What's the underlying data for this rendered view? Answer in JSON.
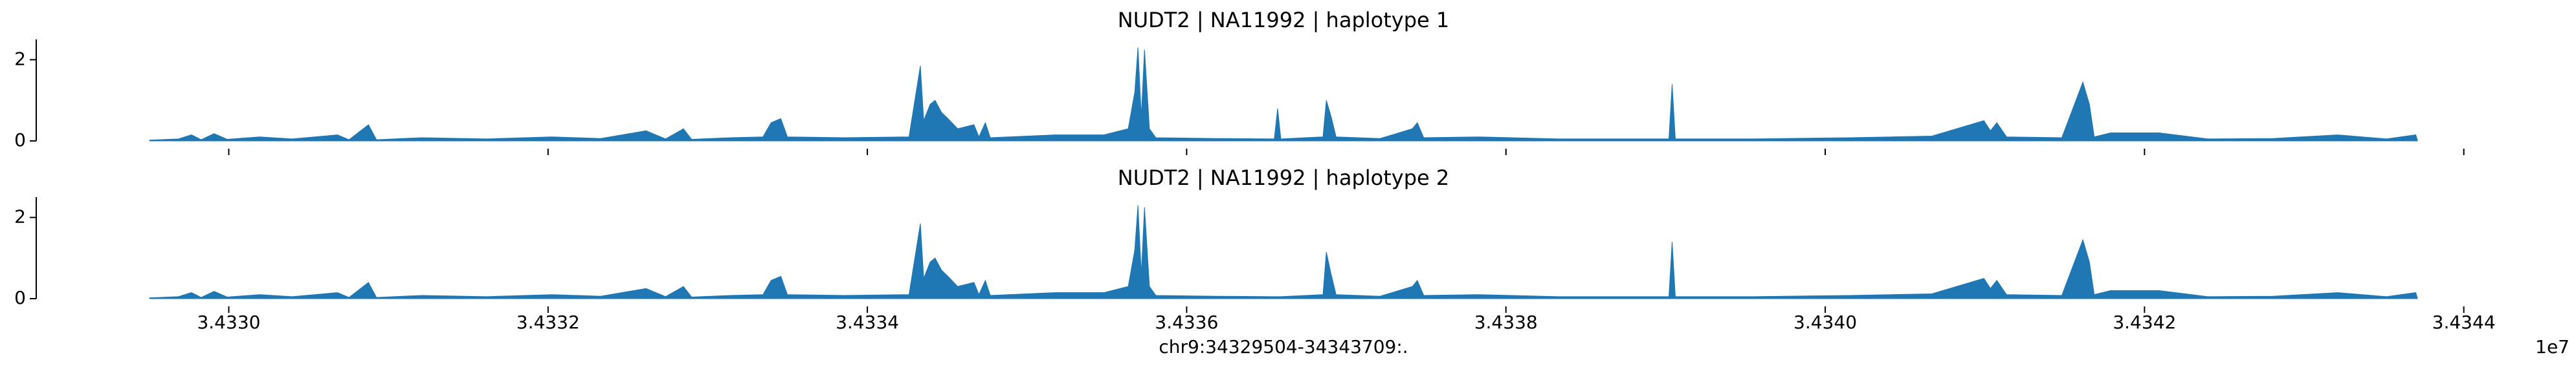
{
  "chart_data": [
    {
      "type": "area",
      "title": "NUDT2 | NA11992 | haplotype 1",
      "color": "#1f77b4",
      "xlim": [
        34328794,
        34344419
      ],
      "ylim": [
        0,
        2.5
      ],
      "yticks": [
        0,
        2
      ],
      "xticks": [
        34330000,
        34332000,
        34334000,
        34336000,
        34338000,
        34340000,
        34342000,
        34344000
      ],
      "x": [
        34329504,
        34329685,
        34329766,
        34329827,
        34329908,
        34329990,
        34330193,
        34330397,
        34330681,
        34330753,
        34330875,
        34330925,
        34331210,
        34331617,
        34332024,
        34332329,
        34332614,
        34332736,
        34332848,
        34332899,
        34333143,
        34333346,
        34333397,
        34333458,
        34333499,
        34333855,
        34334261,
        34334332,
        34334353,
        34334393,
        34334424,
        34334465,
        34334505,
        34334566,
        34334668,
        34334699,
        34334739,
        34334770,
        34335177,
        34335482,
        34335634,
        34335675,
        34335695,
        34335716,
        34335736,
        34335767,
        34335807,
        34336193,
        34336549,
        34336570,
        34336590,
        34336854,
        34336875,
        34336905,
        34336936,
        34337211,
        34337414,
        34337445,
        34337485,
        34337821,
        34338329,
        34339021,
        34339041,
        34339061,
        34339550,
        34340160,
        34340668,
        34340994,
        34341035,
        34341075,
        34341136,
        34341482,
        34341614,
        34341655,
        34341685,
        34341787,
        34342092,
        34342397,
        34342804,
        34343211,
        34343516,
        34343699,
        34343709
      ],
      "values": [
        0.02,
        0.05,
        0.15,
        0.03,
        0.18,
        0.04,
        0.1,
        0.05,
        0.15,
        0.03,
        0.4,
        0.03,
        0.08,
        0.05,
        0.1,
        0.06,
        0.25,
        0.05,
        0.3,
        0.04,
        0.08,
        0.1,
        0.45,
        0.55,
        0.1,
        0.08,
        0.1,
        1.85,
        0.5,
        0.9,
        1.0,
        0.7,
        0.55,
        0.3,
        0.4,
        0.1,
        0.45,
        0.08,
        0.15,
        0.15,
        0.3,
        1.2,
        2.3,
        0.6,
        2.25,
        0.3,
        0.08,
        0.06,
        0.05,
        0.8,
        0.05,
        0.1,
        1.0,
        0.6,
        0.1,
        0.06,
        0.3,
        0.45,
        0.08,
        0.1,
        0.05,
        0.05,
        1.4,
        0.05,
        0.05,
        0.08,
        0.12,
        0.5,
        0.25,
        0.45,
        0.1,
        0.08,
        1.45,
        0.9,
        0.1,
        0.2,
        0.2,
        0.05,
        0.06,
        0.15,
        0.05,
        0.15,
        0.02
      ]
    },
    {
      "type": "area",
      "title": "NUDT2 | NA11992 | haplotype 2",
      "color": "#1f77b4",
      "xlabel": "chr9:34329504-34343709:.",
      "x_offset_label": "1e7",
      "xlim": [
        34328794,
        34344419
      ],
      "ylim": [
        0,
        2.5
      ],
      "yticks": [
        0,
        2
      ],
      "xticks": [
        {
          "value": 34330000,
          "label": "3.4330"
        },
        {
          "value": 34332000,
          "label": "3.4332"
        },
        {
          "value": 34334000,
          "label": "3.4334"
        },
        {
          "value": 34336000,
          "label": "3.4336"
        },
        {
          "value": 34338000,
          "label": "3.4338"
        },
        {
          "value": 34340000,
          "label": "3.4340"
        },
        {
          "value": 34342000,
          "label": "3.4342"
        },
        {
          "value": 34344000,
          "label": "3.4344"
        }
      ],
      "x": [
        34329504,
        34329685,
        34329766,
        34329827,
        34329908,
        34329990,
        34330193,
        34330397,
        34330681,
        34330753,
        34330875,
        34330925,
        34331210,
        34331617,
        34332024,
        34332329,
        34332614,
        34332736,
        34332848,
        34332899,
        34333143,
        34333346,
        34333397,
        34333458,
        34333499,
        34333855,
        34334261,
        34334332,
        34334353,
        34334393,
        34334424,
        34334465,
        34334505,
        34334566,
        34334668,
        34334699,
        34334739,
        34334770,
        34335177,
        34335482,
        34335634,
        34335675,
        34335695,
        34335716,
        34335736,
        34335767,
        34335807,
        34336193,
        34336549,
        34336570,
        34336590,
        34336854,
        34336875,
        34336905,
        34336936,
        34337211,
        34337414,
        34337445,
        34337485,
        34337821,
        34338329,
        34339021,
        34339041,
        34339061,
        34339550,
        34340160,
        34340668,
        34340994,
        34341035,
        34341075,
        34341136,
        34341482,
        34341614,
        34341655,
        34341685,
        34341787,
        34342092,
        34342397,
        34342804,
        34343211,
        34343516,
        34343699,
        34343709
      ],
      "values": [
        0.02,
        0.05,
        0.15,
        0.03,
        0.18,
        0.04,
        0.1,
        0.05,
        0.15,
        0.03,
        0.4,
        0.03,
        0.08,
        0.05,
        0.1,
        0.06,
        0.25,
        0.05,
        0.3,
        0.04,
        0.08,
        0.1,
        0.45,
        0.55,
        0.1,
        0.08,
        0.1,
        1.85,
        0.5,
        0.9,
        1.0,
        0.7,
        0.55,
        0.3,
        0.4,
        0.1,
        0.45,
        0.08,
        0.15,
        0.15,
        0.3,
        1.2,
        2.3,
        0.6,
        2.25,
        0.3,
        0.08,
        0.06,
        0.05,
        0.05,
        0.05,
        0.1,
        1.15,
        0.6,
        0.1,
        0.06,
        0.3,
        0.45,
        0.08,
        0.1,
        0.05,
        0.05,
        1.4,
        0.05,
        0.05,
        0.08,
        0.12,
        0.5,
        0.25,
        0.45,
        0.1,
        0.08,
        1.45,
        0.9,
        0.1,
        0.2,
        0.2,
        0.05,
        0.06,
        0.15,
        0.05,
        0.15,
        0.02
      ]
    }
  ]
}
